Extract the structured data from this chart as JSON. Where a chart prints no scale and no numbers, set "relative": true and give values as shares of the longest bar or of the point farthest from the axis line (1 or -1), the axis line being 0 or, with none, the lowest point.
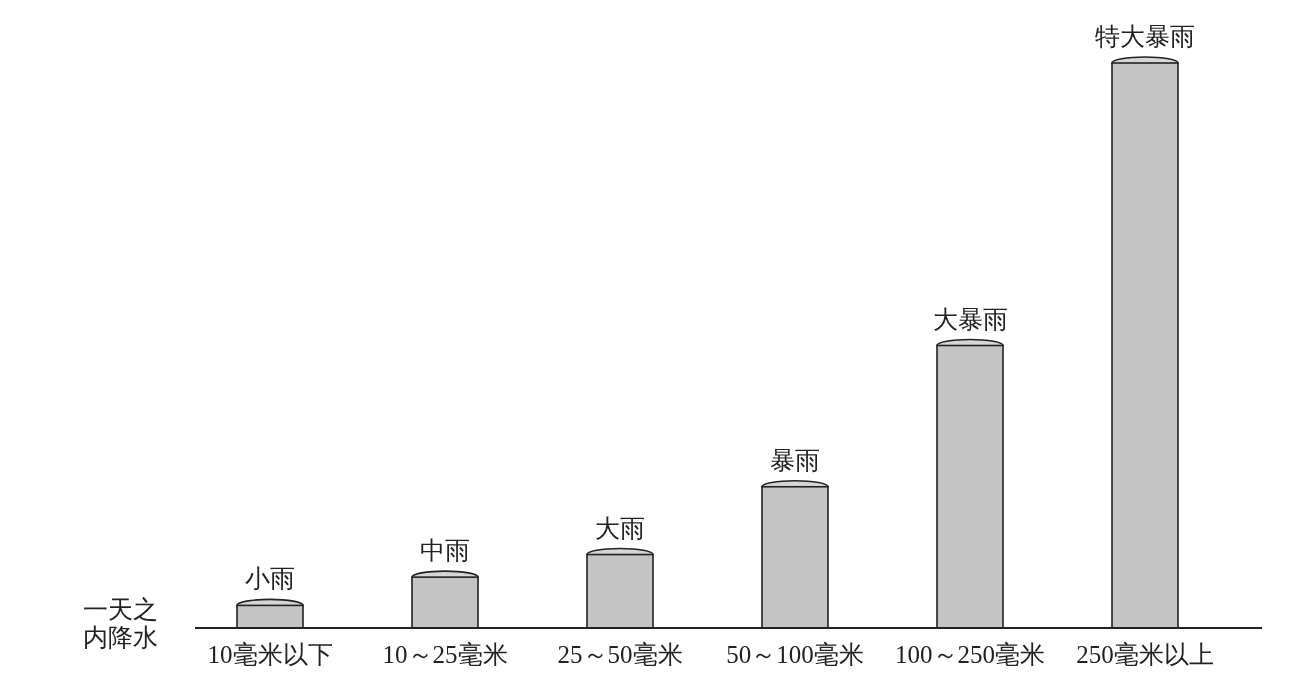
{
  "chart_data": {
    "type": "bar",
    "relative": true,
    "xlabel": "一天之内降水",
    "categories": [
      "10毫米以下",
      "10～25毫米",
      "25～50毫米",
      "50～100毫米",
      "100～250毫米",
      "250毫米以上"
    ],
    "values": [
      0.04,
      0.09,
      0.13,
      0.25,
      0.5,
      1
    ],
    "color": "#c4c4c4",
    "annotations": [
      {
        "text": "小雨",
        "x": "10毫米以下",
        "y": 0.04
      },
      {
        "text": "中雨",
        "x": "10～25毫米",
        "y": 0.09
      },
      {
        "text": "大雨",
        "x": "25～50毫米",
        "y": 0.13
      },
      {
        "text": "暴雨",
        "x": "50～100毫米",
        "y": 0.25
      },
      {
        "text": "大暴雨",
        "x": "100～250毫米",
        "y": 0.5
      },
      {
        "text": "特大暴雨",
        "x": "250毫米以上",
        "y": 1
      }
    ]
  }
}
